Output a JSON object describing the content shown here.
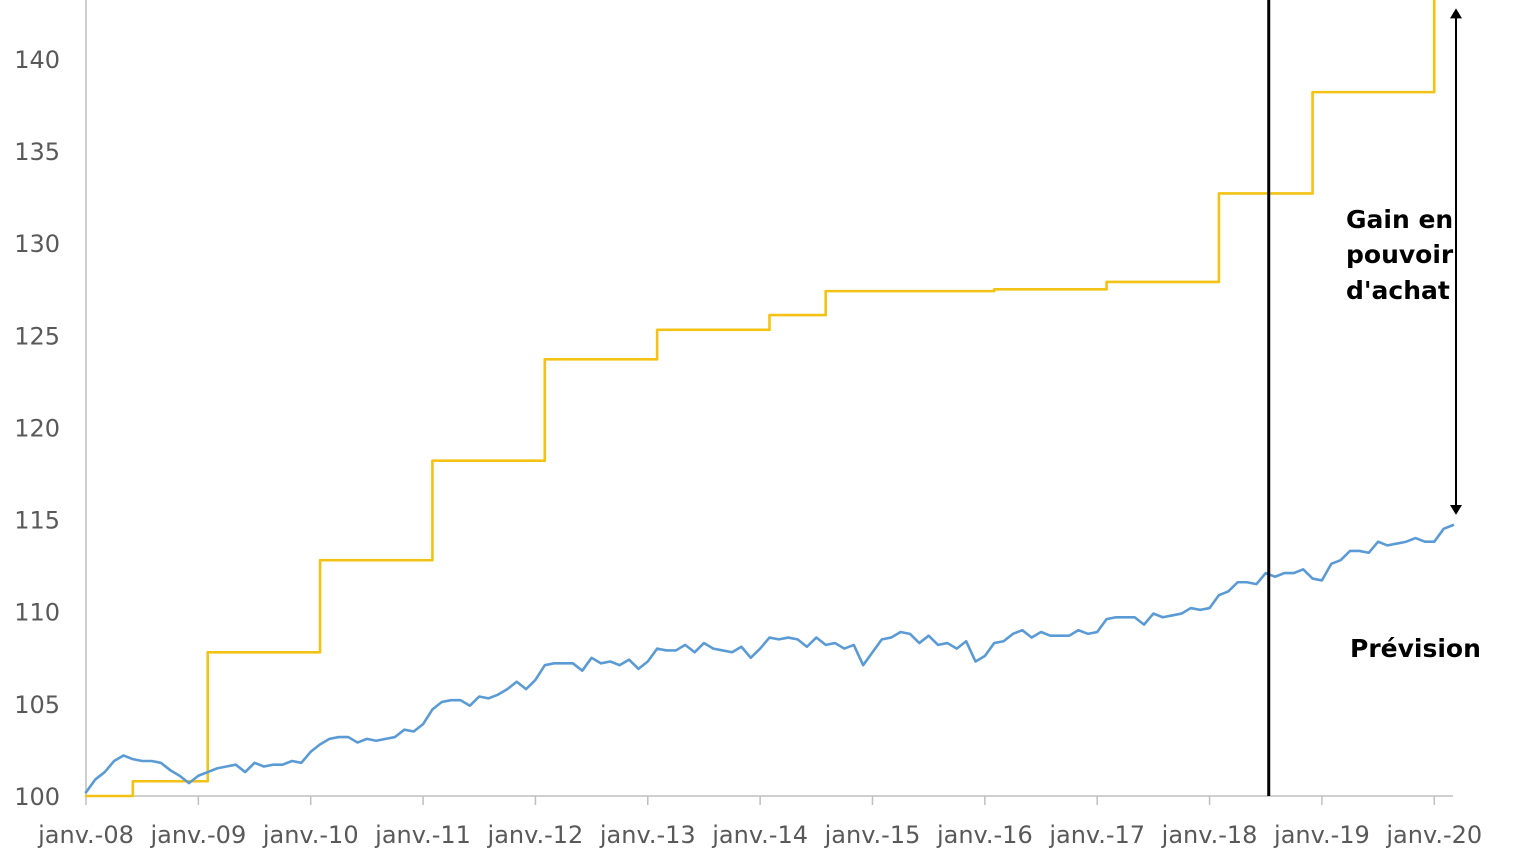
{
  "chart_data": {
    "type": "line",
    "title": "",
    "xlabel": "",
    "ylabel": "",
    "x_tick_labels": [
      "janv.-08",
      "janv.-09",
      "janv.-10",
      "janv.-11",
      "janv.-12",
      "janv.-13",
      "janv.-14",
      "janv.-15",
      "janv.-16",
      "janv.-17",
      "janv.-18",
      "janv.-19",
      "janv.-20"
    ],
    "x_range": [
      "2008-01",
      "2020-03"
    ],
    "y_ticks": [
      100,
      105,
      110,
      115,
      120,
      125,
      130,
      135,
      140
    ],
    "ylim": [
      100,
      143.2
    ],
    "grid": false,
    "legend": "none",
    "series": [
      {
        "color": "#f2c314",
        "style": "step",
        "points": [
          [
            "2008-01",
            100.0
          ],
          [
            "2008-06",
            100.0
          ],
          [
            "2008-06",
            100.8
          ],
          [
            "2009-02",
            100.8
          ],
          [
            "2009-02",
            107.8
          ],
          [
            "2010-02",
            107.8
          ],
          [
            "2010-02",
            112.8
          ],
          [
            "2011-02",
            112.8
          ],
          [
            "2011-02",
            118.2
          ],
          [
            "2012-02",
            118.2
          ],
          [
            "2012-02",
            123.7
          ],
          [
            "2013-02",
            123.7
          ],
          [
            "2013-02",
            125.3
          ],
          [
            "2014-02",
            125.3
          ],
          [
            "2014-02",
            126.1
          ],
          [
            "2014-08",
            126.1
          ],
          [
            "2014-08",
            127.4
          ],
          [
            "2016-02",
            127.4
          ],
          [
            "2016-02",
            127.5
          ],
          [
            "2017-02",
            127.5
          ],
          [
            "2017-02",
            127.9
          ],
          [
            "2018-02",
            127.9
          ],
          [
            "2018-02",
            132.7
          ],
          [
            "2018-12",
            132.7
          ],
          [
            "2018-12",
            138.2
          ],
          [
            "2020-01",
            138.2
          ],
          [
            "2020-01",
            143.2
          ]
        ]
      },
      {
        "color": "#5b9bd5",
        "style": "line",
        "points": [
          [
            "2008-01",
            100.2
          ],
          [
            "2008-02",
            100.9
          ],
          [
            "2008-03",
            101.3
          ],
          [
            "2008-04",
            101.9
          ],
          [
            "2008-05",
            102.2
          ],
          [
            "2008-06",
            102.0
          ],
          [
            "2008-07",
            101.9
          ],
          [
            "2008-08",
            101.9
          ],
          [
            "2008-09",
            101.8
          ],
          [
            "2008-10",
            101.4
          ],
          [
            "2008-11",
            101.1
          ],
          [
            "2008-12",
            100.7
          ],
          [
            "2009-01",
            101.1
          ],
          [
            "2009-02",
            101.3
          ],
          [
            "2009-03",
            101.5
          ],
          [
            "2009-04",
            101.6
          ],
          [
            "2009-05",
            101.7
          ],
          [
            "2009-06",
            101.3
          ],
          [
            "2009-07",
            101.8
          ],
          [
            "2009-08",
            101.6
          ],
          [
            "2009-09",
            101.7
          ],
          [
            "2009-10",
            101.7
          ],
          [
            "2009-11",
            101.9
          ],
          [
            "2009-12",
            101.8
          ],
          [
            "2010-01",
            102.4
          ],
          [
            "2010-02",
            102.8
          ],
          [
            "2010-03",
            103.1
          ],
          [
            "2010-04",
            103.2
          ],
          [
            "2010-05",
            103.2
          ],
          [
            "2010-06",
            102.9
          ],
          [
            "2010-07",
            103.1
          ],
          [
            "2010-08",
            103.0
          ],
          [
            "2010-09",
            103.1
          ],
          [
            "2010-10",
            103.2
          ],
          [
            "2010-11",
            103.6
          ],
          [
            "2010-12",
            103.5
          ],
          [
            "2011-01",
            103.9
          ],
          [
            "2011-02",
            104.7
          ],
          [
            "2011-03",
            105.1
          ],
          [
            "2011-04",
            105.2
          ],
          [
            "2011-05",
            105.2
          ],
          [
            "2011-06",
            104.9
          ],
          [
            "2011-07",
            105.4
          ],
          [
            "2011-08",
            105.3
          ],
          [
            "2011-09",
            105.5
          ],
          [
            "2011-10",
            105.8
          ],
          [
            "2011-11",
            106.2
          ],
          [
            "2011-12",
            105.8
          ],
          [
            "2012-01",
            106.3
          ],
          [
            "2012-02",
            107.1
          ],
          [
            "2012-03",
            107.2
          ],
          [
            "2012-04",
            107.2
          ],
          [
            "2012-05",
            107.2
          ],
          [
            "2012-06",
            106.8
          ],
          [
            "2012-07",
            107.5
          ],
          [
            "2012-08",
            107.2
          ],
          [
            "2012-09",
            107.3
          ],
          [
            "2012-10",
            107.1
          ],
          [
            "2012-11",
            107.4
          ],
          [
            "2012-12",
            106.9
          ],
          [
            "2013-01",
            107.3
          ],
          [
            "2013-02",
            108.0
          ],
          [
            "2013-03",
            107.9
          ],
          [
            "2013-04",
            107.9
          ],
          [
            "2013-05",
            108.2
          ],
          [
            "2013-06",
            107.8
          ],
          [
            "2013-07",
            108.3
          ],
          [
            "2013-08",
            108.0
          ],
          [
            "2013-09",
            107.9
          ],
          [
            "2013-10",
            107.8
          ],
          [
            "2013-11",
            108.1
          ],
          [
            "2013-12",
            107.5
          ],
          [
            "2014-01",
            108.0
          ],
          [
            "2014-02",
            108.6
          ],
          [
            "2014-03",
            108.5
          ],
          [
            "2014-04",
            108.6
          ],
          [
            "2014-05",
            108.5
          ],
          [
            "2014-06",
            108.1
          ],
          [
            "2014-07",
            108.6
          ],
          [
            "2014-08",
            108.2
          ],
          [
            "2014-09",
            108.3
          ],
          [
            "2014-10",
            108.0
          ],
          [
            "2014-11",
            108.2
          ],
          [
            "2014-12",
            107.1
          ],
          [
            "2015-01",
            107.8
          ],
          [
            "2015-02",
            108.5
          ],
          [
            "2015-03",
            108.6
          ],
          [
            "2015-04",
            108.9
          ],
          [
            "2015-05",
            108.8
          ],
          [
            "2015-06",
            108.3
          ],
          [
            "2015-07",
            108.7
          ],
          [
            "2015-08",
            108.2
          ],
          [
            "2015-09",
            108.3
          ],
          [
            "2015-10",
            108.0
          ],
          [
            "2015-11",
            108.4
          ],
          [
            "2015-12",
            107.3
          ],
          [
            "2016-01",
            107.6
          ],
          [
            "2016-02",
            108.3
          ],
          [
            "2016-03",
            108.4
          ],
          [
            "2016-04",
            108.8
          ],
          [
            "2016-05",
            109.0
          ],
          [
            "2016-06",
            108.6
          ],
          [
            "2016-07",
            108.9
          ],
          [
            "2016-08",
            108.7
          ],
          [
            "2016-09",
            108.7
          ],
          [
            "2016-10",
            108.7
          ],
          [
            "2016-11",
            109.0
          ],
          [
            "2016-12",
            108.8
          ],
          [
            "2017-01",
            108.9
          ],
          [
            "2017-02",
            109.6
          ],
          [
            "2017-03",
            109.7
          ],
          [
            "2017-04",
            109.7
          ],
          [
            "2017-05",
            109.7
          ],
          [
            "2017-06",
            109.3
          ],
          [
            "2017-07",
            109.9
          ],
          [
            "2017-08",
            109.7
          ],
          [
            "2017-09",
            109.8
          ],
          [
            "2017-10",
            109.9
          ],
          [
            "2017-11",
            110.2
          ],
          [
            "2017-12",
            110.1
          ],
          [
            "2018-01",
            110.2
          ],
          [
            "2018-02",
            110.9
          ],
          [
            "2018-03",
            111.1
          ],
          [
            "2018-04",
            111.6
          ],
          [
            "2018-05",
            111.6
          ],
          [
            "2018-06",
            111.5
          ],
          [
            "2018-07",
            112.1
          ],
          [
            "2018-08",
            111.9
          ],
          [
            "2018-09",
            112.1
          ],
          [
            "2018-10",
            112.1
          ],
          [
            "2018-11",
            112.3
          ],
          [
            "2018-12",
            111.8
          ],
          [
            "2019-01",
            111.7
          ],
          [
            "2019-02",
            112.6
          ],
          [
            "2019-03",
            112.8
          ],
          [
            "2019-04",
            113.3
          ],
          [
            "2019-05",
            113.3
          ],
          [
            "2019-06",
            113.2
          ],
          [
            "2019-07",
            113.8
          ],
          [
            "2019-08",
            113.6
          ],
          [
            "2019-09",
            113.7
          ],
          [
            "2019-10",
            113.8
          ],
          [
            "2019-11",
            114.0
          ],
          [
            "2019-12",
            113.8
          ],
          [
            "2020-01",
            113.8
          ],
          [
            "2020-02",
            114.5
          ],
          [
            "2020-03",
            114.7
          ]
        ]
      }
    ],
    "forecast_line": {
      "x": "2018-07",
      "color": "#000000"
    },
    "arrow": {
      "x": "2020-03",
      "y_from": 142.8,
      "y_to": 115.2,
      "color": "#000000"
    },
    "annotations": {
      "gain_line1": "Gain en",
      "gain_line2": "pouvoir",
      "gain_line3": "d'achat",
      "forecast": "Prévision"
    }
  }
}
